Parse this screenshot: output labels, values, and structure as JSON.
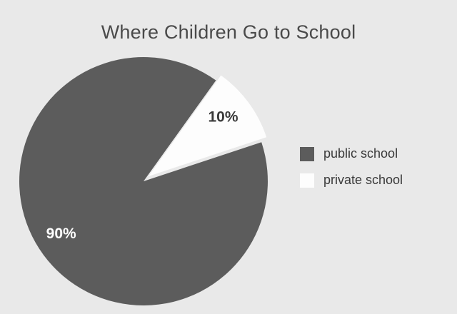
{
  "chart_data": {
    "type": "pie",
    "title": "Where Children Go to School",
    "slices": [
      {
        "name": "public school",
        "value": 90,
        "label": "90%",
        "color": "#5c5c5c",
        "label_color": "#ffffff"
      },
      {
        "name": "private school",
        "value": 10,
        "label": "10%",
        "color": "#fdfdfd",
        "label_color": "#3a3a3a"
      }
    ],
    "legend": {
      "placement": "right",
      "items": [
        {
          "label": "public school",
          "color": "#5c5c5c"
        },
        {
          "label": "private school",
          "color": "#fdfdfd"
        }
      ]
    },
    "background_color": "#e9e9e9"
  }
}
